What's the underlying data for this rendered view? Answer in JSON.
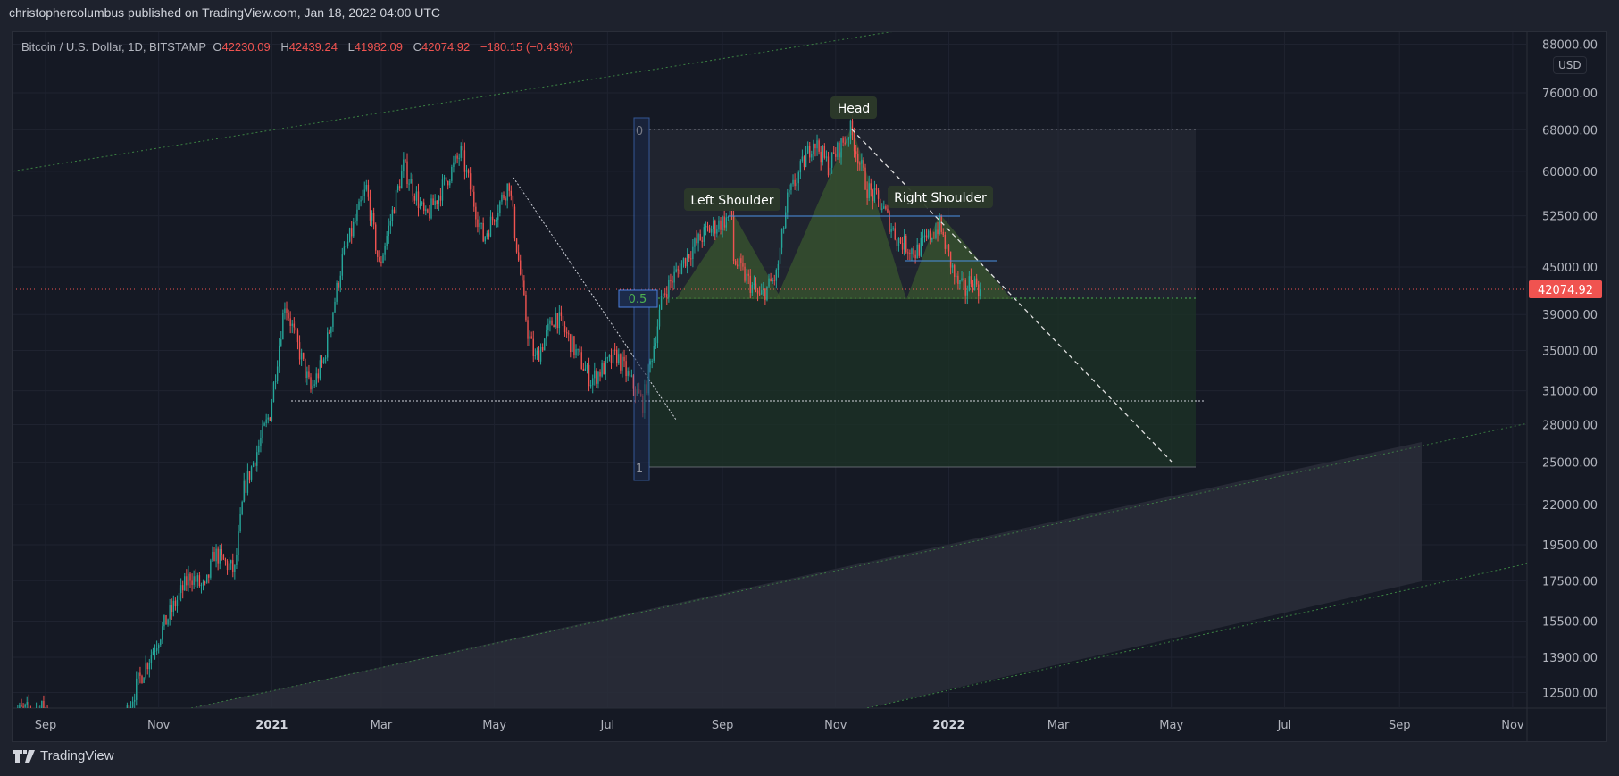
{
  "header": {
    "published": "christophercolumbus published on TradingView.com, Jan 18, 2022 04:00 UTC"
  },
  "legend": {
    "symbol": "Bitcoin / U.S. Dollar, 1D, BITSTAMP",
    "o_label": "O",
    "open": "42230.09",
    "h_label": "H",
    "high": "42439.24",
    "l_label": "L",
    "low": "41982.09",
    "c_label": "C",
    "close": "42074.92",
    "change": "−180.15 (−0.43%)"
  },
  "currency": "USD",
  "footer": {
    "brand": "TradingView"
  },
  "colors": {
    "up": "#26a69a",
    "down": "#ef5350",
    "price_tag": "#f05350",
    "fib_blue": "#4a7fe0",
    "pattern_fill": "#3b5a2e"
  },
  "annotations": {
    "head": "Head",
    "left_shoulder": "Left Shoulder",
    "right_shoulder": "Right Shoulder",
    "fib_0": "0",
    "fib_05": "0.5",
    "fib_1": "1"
  },
  "chart_data": {
    "type": "candlestick",
    "scale": "log",
    "last_price": 42074.92,
    "last_price_label": "42074.92",
    "price_ticks": [
      88000,
      76000,
      68000,
      60000,
      52500,
      45000,
      39000,
      35000,
      31000,
      28000,
      25000,
      22000,
      19500,
      17500,
      15500,
      13900,
      12500
    ],
    "price_tick_labels": [
      "88000.00",
      "76000.00",
      "68000.00",
      "60000.00",
      "52500.00",
      "45000.00",
      "39000.00",
      "35000.00",
      "31000.00",
      "28000.00",
      "25000.00",
      "22000.00",
      "19500.00",
      "17500.00",
      "15500.00",
      "13900.00",
      "12500.00"
    ],
    "time_ticks": [
      {
        "label": "Sep",
        "date": "2020-09-01",
        "bold": false
      },
      {
        "label": "Nov",
        "date": "2020-11-01",
        "bold": false
      },
      {
        "label": "2021",
        "date": "2021-01-01",
        "bold": true
      },
      {
        "label": "Mar",
        "date": "2021-03-01",
        "bold": false
      },
      {
        "label": "May",
        "date": "2021-05-01",
        "bold": false
      },
      {
        "label": "Jul",
        "date": "2021-07-01",
        "bold": false
      },
      {
        "label": "Sep",
        "date": "2021-09-01",
        "bold": false
      },
      {
        "label": "Nov",
        "date": "2021-11-01",
        "bold": false
      },
      {
        "label": "2022",
        "date": "2022-01-01",
        "bold": true
      },
      {
        "label": "Mar",
        "date": "2022-03-01",
        "bold": false
      },
      {
        "label": "May",
        "date": "2022-05-01",
        "bold": false
      },
      {
        "label": "Jul",
        "date": "2022-07-01",
        "bold": false
      },
      {
        "label": "Sep",
        "date": "2022-09-01",
        "bold": false
      },
      {
        "label": "Nov",
        "date": "2022-11-01",
        "bold": false
      }
    ],
    "anchors": [
      [
        "2020-08-14",
        11800
      ],
      [
        "2020-09-01",
        11900
      ],
      [
        "2020-09-05",
        10200
      ],
      [
        "2020-09-20",
        10900
      ],
      [
        "2020-10-08",
        10700
      ],
      [
        "2020-10-21",
        12900
      ],
      [
        "2020-11-05",
        15500
      ],
      [
        "2020-11-18",
        17800
      ],
      [
        "2020-11-26",
        17000
      ],
      [
        "2020-12-01",
        19000
      ],
      [
        "2020-12-12",
        18000
      ],
      [
        "2020-12-17",
        23000
      ],
      [
        "2020-12-31",
        29000
      ],
      [
        "2021-01-08",
        40500
      ],
      [
        "2021-01-22",
        31000
      ],
      [
        "2021-01-29",
        34000
      ],
      [
        "2021-02-08",
        46000
      ],
      [
        "2021-02-21",
        57000
      ],
      [
        "2021-02-28",
        45000
      ],
      [
        "2021-03-13",
        61000
      ],
      [
        "2021-03-25",
        52000
      ],
      [
        "2021-04-13",
        63500
      ],
      [
        "2021-04-25",
        49000
      ],
      [
        "2021-05-09",
        58000
      ],
      [
        "2021-05-12",
        50000
      ],
      [
        "2021-05-19",
        37000
      ],
      [
        "2021-05-23",
        34000
      ],
      [
        "2021-06-03",
        39000
      ],
      [
        "2021-06-22",
        32000
      ],
      [
        "2021-07-06",
        34500
      ],
      [
        "2021-07-20",
        29800
      ],
      [
        "2021-07-31",
        41500
      ],
      [
        "2021-08-14",
        47000
      ],
      [
        "2021-08-23",
        50000
      ],
      [
        "2021-09-06",
        52500
      ],
      [
        "2021-09-07",
        46000
      ],
      [
        "2021-09-21",
        41000
      ],
      [
        "2021-09-30",
        43800
      ],
      [
        "2021-10-06",
        55000
      ],
      [
        "2021-10-20",
        66000
      ],
      [
        "2021-10-28",
        61000
      ],
      [
        "2021-11-09",
        68000
      ],
      [
        "2021-11-18",
        57000
      ],
      [
        "2021-11-26",
        54000
      ],
      [
        "2021-12-04",
        49000
      ],
      [
        "2021-12-14",
        47000
      ],
      [
        "2021-12-27",
        51000
      ],
      [
        "2022-01-05",
        43000
      ],
      [
        "2022-01-10",
        41800
      ],
      [
        "2022-01-13",
        43500
      ],
      [
        "2022-01-18",
        42075
      ]
    ]
  }
}
